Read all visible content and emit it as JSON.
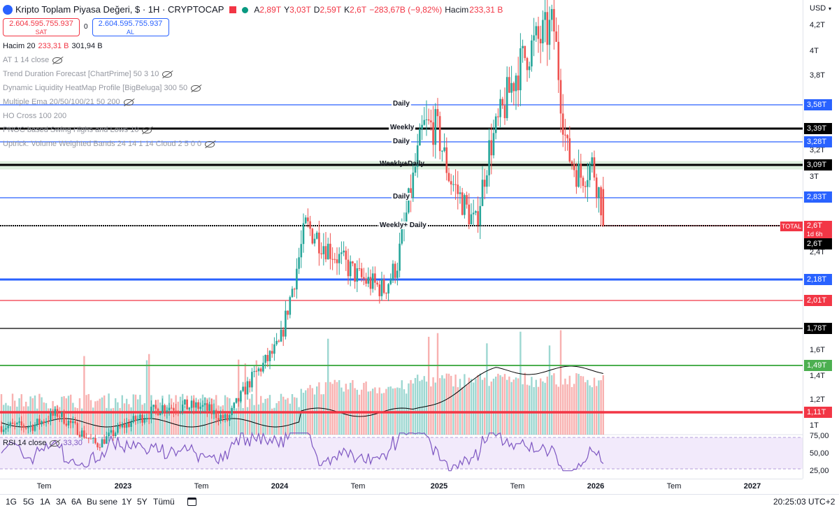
{
  "header": {
    "title": "Kripto Toplam Piyasa Değeri, $ · 1H · CRYPTOCAP",
    "ohlc": [
      {
        "label": "A",
        "value": "2,89T"
      },
      {
        "label": "Y",
        "value": "3,03T"
      },
      {
        "label": "D",
        "value": "2,59T"
      },
      {
        "label": "K",
        "value": "2,6T"
      }
    ],
    "change": "−283,67B (−9,82%)",
    "volume_label": "Hacim",
    "volume_value": "233,31 B"
  },
  "trade": {
    "sell_price": "2.604.595.755.937",
    "sell_label": "SAT",
    "spread": "0",
    "buy_price": "2.604.595.755.937",
    "buy_label": "AL"
  },
  "volume_indicator": {
    "name": "Hacim 20",
    "v1": "233,31 B",
    "v2": "301,94 B"
  },
  "indicators": [
    "AT 1 14 close",
    "Trend Duration Forecast [ChartPrime] 50 3 10",
    "Dynamic Liquidity HeatMap Profile [BigBeluga] 300 50",
    "Multiple Ema 20/50/100/21 50 200",
    "HO Cross 100 200",
    "PNOC based Swing Highs and Lows 10",
    "Uptrick: Volume Weighted Bands 24 14 1 14 Cloud 2 5 0 0"
  ],
  "price_scale": {
    "currency": "USD",
    "ticks": [
      "4,2T",
      "4T",
      "3,8T",
      "3,2T",
      "3T",
      "2,4T",
      "1,6T",
      "1,4T",
      "1,2T",
      "1T",
      "75,00",
      "50,00",
      "25,00"
    ],
    "badges": [
      {
        "text": "3,58T",
        "color": "#2962ff"
      },
      {
        "text": "3,39T",
        "color": "#000000"
      },
      {
        "text": "3,28T",
        "color": "#2962ff"
      },
      {
        "text": "3,09T",
        "color": "#000000"
      },
      {
        "text": "2,83T",
        "color": "#2962ff"
      },
      {
        "text": "2,6T",
        "color": "#f23645"
      },
      {
        "text": "2,6T",
        "color": "#000000"
      },
      {
        "text": "2,18T",
        "color": "#2962ff"
      },
      {
        "text": "2,01T",
        "color": "#f23645"
      },
      {
        "text": "1,78T",
        "color": "#000000"
      },
      {
        "text": "1,49T",
        "color": "#4caf50"
      },
      {
        "text": "1,11T",
        "color": "#f23645"
      }
    ],
    "countdown": "1d 6h",
    "total_tag": "TOTAL"
  },
  "level_labels": [
    "Daily",
    "Weekly",
    "Daily",
    "Weekly+Daily",
    "Daily",
    "Weekly+ Daily"
  ],
  "rsi": {
    "name": "RSI 14 close",
    "value": "33,30"
  },
  "time_axis": [
    {
      "text": "Tem",
      "year": false
    },
    {
      "text": "2023",
      "year": true
    },
    {
      "text": "Tem",
      "year": false
    },
    {
      "text": "2024",
      "year": true
    },
    {
      "text": "Tem",
      "year": false
    },
    {
      "text": "2025",
      "year": true
    },
    {
      "text": "Tem",
      "year": false
    },
    {
      "text": "2026",
      "year": true
    },
    {
      "text": "Tem",
      "year": false
    },
    {
      "text": "2027",
      "year": true
    }
  ],
  "bottom_bar": {
    "ranges": [
      "1G",
      "5G",
      "1A",
      "3A",
      "6A",
      "Bu sene",
      "1Y",
      "5Y",
      "Tümü"
    ],
    "clock": "20:25:03 UTC+2"
  },
  "colors": {
    "up": "#26a69a",
    "down": "#ef5350",
    "blue_level": "#2962ff",
    "red_level": "#f23645",
    "green_level": "#4caf50",
    "rsi_band": "#e8d9f7"
  },
  "chart_data": {
    "type": "candlestick",
    "title": "Kripto Toplam Piyasa Değeri",
    "timeframe": "1H",
    "price_unit": "T (trillion USD)",
    "close_path": [
      {
        "x": "2022-06",
        "y": 1.0
      },
      {
        "x": "2022-08",
        "y": 1.1
      },
      {
        "x": "2022-11",
        "y": 0.85
      },
      {
        "x": "2023-01",
        "y": 1.0
      },
      {
        "x": "2023-04",
        "y": 1.15
      },
      {
        "x": "2023-07",
        "y": 1.15
      },
      {
        "x": "2023-09",
        "y": 1.05
      },
      {
        "x": "2023-11",
        "y": 1.4
      },
      {
        "x": "2024-01",
        "y": 1.65
      },
      {
        "x": "2024-03",
        "y": 2.6
      },
      {
        "x": "2024-05",
        "y": 2.4
      },
      {
        "x": "2024-07",
        "y": 2.2
      },
      {
        "x": "2024-09",
        "y": 2.1
      },
      {
        "x": "2024-10",
        "y": 2.3
      },
      {
        "x": "2024-12",
        "y": 3.4
      },
      {
        "x": "2025-01",
        "y": 3.4
      },
      {
        "x": "2025-02",
        "y": 3.0
      },
      {
        "x": "2025-04",
        "y": 2.6
      },
      {
        "x": "2025-05",
        "y": 3.2
      },
      {
        "x": "2025-07",
        "y": 3.8
      },
      {
        "x": "2025-08",
        "y": 4.0
      },
      {
        "x": "2025-10",
        "y": 4.2
      },
      {
        "x": "2025-11",
        "y": 3.2
      },
      {
        "x": "2025-12",
        "y": 3.0
      },
      {
        "x": "2026-01",
        "y": 3.1
      },
      {
        "x": "2026-02",
        "y": 2.6
      }
    ],
    "levels": [
      3.58,
      3.39,
      3.28,
      3.09,
      2.83,
      2.6,
      2.18,
      2.01,
      1.78,
      1.49,
      1.11
    ],
    "rsi_last": 33.3,
    "rsi_levels": [
      70,
      30
    ]
  }
}
